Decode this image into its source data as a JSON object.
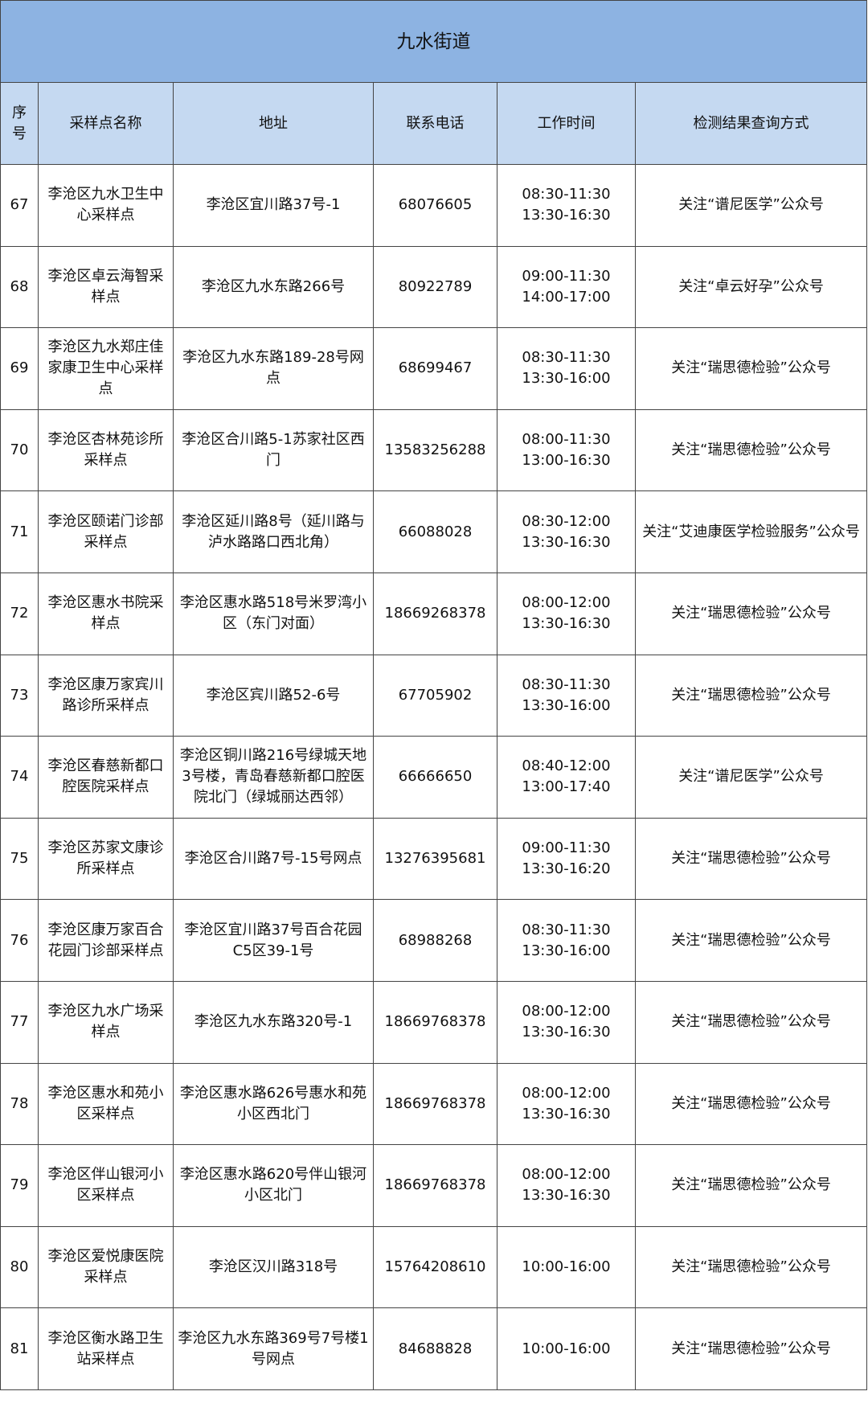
{
  "title": "九水街道",
  "columns": [
    "序号",
    "采样点名称",
    "地址",
    "联系电话",
    "工作时间",
    "检测结果查询方式"
  ],
  "rows": [
    {
      "no": "67",
      "name": "李沧区九水卫生中心采样点",
      "address": "李沧区宜川路37号-1",
      "phone": "68076605",
      "hours": [
        "08:30-11:30",
        "13:30-16:30"
      ],
      "query": "关注“谱尼医学”公众号"
    },
    {
      "no": "68",
      "name": "李沧区卓云海智采样点",
      "address": "李沧区九水东路266号",
      "phone": "80922789",
      "hours": [
        "09:00-11:30",
        "14:00-17:00"
      ],
      "query": "关注“卓云好孕”公众号"
    },
    {
      "no": "69",
      "name": "李沧区九水郑庄佳家康卫生中心采样点",
      "address": "李沧区九水东路189-28号网点",
      "phone": "68699467",
      "hours": [
        "08:30-11:30",
        "13:30-16:00"
      ],
      "query": "关注“瑞思德检验”公众号"
    },
    {
      "no": "70",
      "name": "李沧区杏林苑诊所采样点",
      "address": "李沧区合川路5-1苏家社区西门",
      "phone": "13583256288",
      "hours": [
        "08:00-11:30",
        "13:00-16:30"
      ],
      "query": "关注“瑞思德检验”公众号"
    },
    {
      "no": "71",
      "name": "李沧区颐诺门诊部采样点",
      "address": "李沧区延川路8号（延川路与泸水路路口西北角）",
      "phone": "66088028",
      "hours": [
        "08:30-12:00",
        "13:30-16:30"
      ],
      "query": "关注“艾迪康医学检验服务”公众号"
    },
    {
      "no": "72",
      "name": "李沧区惠水书院采样点",
      "address": "李沧区惠水路518号米罗湾小区（东门对面）",
      "phone": "18669268378",
      "hours": [
        "08:00-12:00",
        "13:30-16:30"
      ],
      "query": "关注“瑞思德检验”公众号"
    },
    {
      "no": "73",
      "name": "李沧区康万家宾川路诊所采样点",
      "address": "李沧区宾川路52-6号",
      "phone": "67705902",
      "hours": [
        "08:30-11:30",
        "13:30-16:00"
      ],
      "query": "关注“瑞思德检验”公众号"
    },
    {
      "no": "74",
      "name": "李沧区春慈新都口腔医院采样点",
      "address": "李沧区铜川路216号绿城天地3号楼，青岛春慈新都口腔医院北门（绿城丽达西邻）",
      "phone": "66666650",
      "hours": [
        "08:40-12:00",
        "13:00-17:40"
      ],
      "query": "关注“谱尼医学”公众号"
    },
    {
      "no": "75",
      "name": "李沧区苏家文康诊所采样点",
      "address": "李沧区合川路7号-15号网点",
      "phone": "13276395681",
      "hours": [
        "09:00-11:30",
        "13:30-16:20"
      ],
      "query": "关注“瑞思德检验”公众号"
    },
    {
      "no": "76",
      "name": "李沧区康万家百合花园门诊部采样点",
      "address": "李沧区宜川路37号百合花园C5区39-1号",
      "phone": "68988268",
      "hours": [
        "08:30-11:30",
        "13:30-16:00"
      ],
      "query": "关注“瑞思德检验”公众号"
    },
    {
      "no": "77",
      "name": "李沧区九水广场采样点",
      "address": "李沧区九水东路320号-1",
      "phone": "18669768378",
      "hours": [
        "08:00-12:00",
        "13:30-16:30"
      ],
      "query": "关注“瑞思德检验”公众号"
    },
    {
      "no": "78",
      "name": "李沧区惠水和苑小区采样点",
      "address": "李沧区惠水路626号惠水和苑小区西北门",
      "phone": "18669768378",
      "hours": [
        "08:00-12:00",
        "13:30-16:30"
      ],
      "query": "关注“瑞思德检验”公众号"
    },
    {
      "no": "79",
      "name": "李沧区伴山银河小区采样点",
      "address": "李沧区惠水路620号伴山银河小区北门",
      "phone": "18669768378",
      "hours": [
        "08:00-12:00",
        "13:30-16:30"
      ],
      "query": "关注“瑞思德检验”公众号"
    },
    {
      "no": "80",
      "name": "李沧区爱悦康医院采样点",
      "address": "李沧区汉川路318号",
      "phone": "15764208610",
      "hours": [
        "10:00-16:00"
      ],
      "query": "关注“瑞思德检验”公众号"
    },
    {
      "no": "81",
      "name": "李沧区衡水路卫生站采样点",
      "address": "李沧区九水东路369号7号楼1号网点",
      "phone": "84688828",
      "hours": [
        "10:00-16:00"
      ],
      "query": "关注“瑞思德检验”公众号"
    }
  ],
  "colors": {
    "title_bg": "#8db3e2",
    "header_bg": "#c5d9f1",
    "border": "#444444"
  }
}
